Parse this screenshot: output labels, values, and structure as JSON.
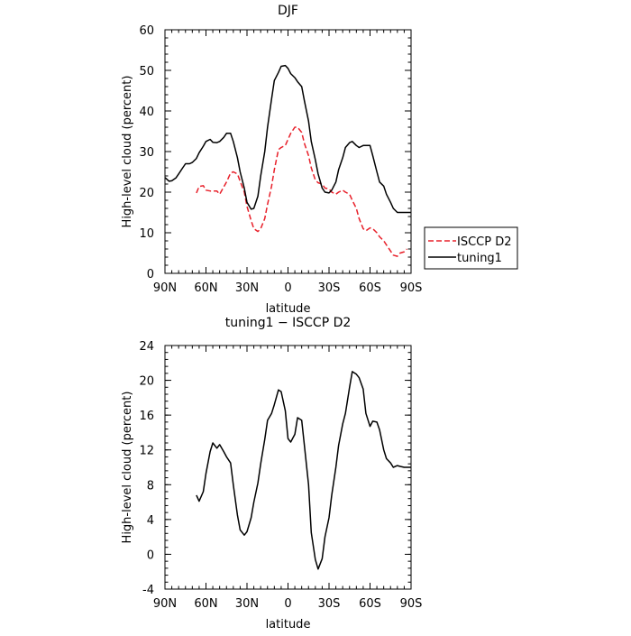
{
  "chart_data": [
    {
      "type": "line",
      "title": "DJF",
      "xlabel": "latitude",
      "ylabel": "High-level cloud (percent)",
      "xlim": [
        -90,
        90
      ],
      "ylim": [
        0,
        60
      ],
      "xtick_values": [
        -90,
        -60,
        -30,
        0,
        30,
        60,
        90
      ],
      "xticks": [
        "90N",
        "60N",
        "30N",
        "0",
        "30S",
        "60S",
        "90S"
      ],
      "yticks": [
        0,
        10,
        20,
        30,
        40,
        50,
        60
      ],
      "legend_position": "right",
      "series": [
        {
          "name": "ISCCP D2",
          "color": "#e8202a",
          "dash": true,
          "x": [
            -67,
            -65,
            -62,
            -60,
            -57,
            -55,
            -52,
            -50,
            -48,
            -45,
            -42,
            -40,
            -37,
            -35,
            -32,
            -30,
            -27,
            -25,
            -22,
            -20,
            -17,
            -15,
            -12,
            -10,
            -7,
            -5,
            -2,
            0,
            2,
            5,
            7,
            10,
            12,
            15,
            17,
            20,
            22,
            25,
            27,
            30,
            32,
            35,
            37,
            40,
            42,
            45,
            47,
            50,
            52,
            55,
            57,
            60,
            62,
            65,
            67,
            70,
            72,
            75,
            77,
            80,
            82,
            85,
            87
          ],
          "y": [
            19.8,
            21.4,
            21.6,
            20.5,
            20.3,
            20.3,
            20.3,
            19.5,
            20.7,
            22.5,
            24.7,
            25.0,
            24.5,
            22.7,
            20.0,
            16.5,
            13.0,
            11.0,
            10.3,
            11.0,
            13.5,
            17.0,
            21.5,
            25.5,
            30.5,
            31.0,
            31.5,
            33.0,
            34.5,
            36.0,
            36.0,
            34.7,
            32.0,
            29.0,
            26.0,
            23.0,
            22.3,
            22.0,
            21.0,
            20.8,
            20.0,
            19.5,
            20.0,
            20.5,
            20.0,
            19.5,
            18.0,
            16.0,
            13.5,
            11.0,
            10.5,
            11.2,
            11.0,
            10.0,
            9.0,
            8.0,
            7.0,
            5.5,
            4.5,
            4.2,
            5.0,
            5.3,
            6.0
          ]
        },
        {
          "name": "tuning1",
          "color": "#000000",
          "dash": false,
          "x": [
            -90,
            -87,
            -85,
            -82,
            -80,
            -77,
            -75,
            -72,
            -70,
            -67,
            -65,
            -62,
            -60,
            -57,
            -55,
            -52,
            -50,
            -47,
            -45,
            -42,
            -40,
            -37,
            -35,
            -32,
            -30,
            -27,
            -25,
            -22,
            -20,
            -17,
            -15,
            -12,
            -10,
            -7,
            -5,
            -2,
            0,
            2,
            5,
            7,
            10,
            12,
            15,
            17,
            20,
            22,
            25,
            27,
            30,
            32,
            35,
            37,
            40,
            42,
            45,
            47,
            50,
            52,
            55,
            57,
            60,
            62,
            65,
            67,
            70,
            72,
            75,
            77,
            80,
            82,
            85,
            87,
            90
          ],
          "y": [
            23.6,
            22.7,
            22.8,
            23.5,
            24.5,
            26.0,
            27.0,
            27.0,
            27.3,
            28.3,
            29.7,
            31.3,
            32.5,
            33.0,
            32.3,
            32.2,
            32.5,
            33.5,
            34.5,
            34.5,
            32.5,
            28.5,
            25.0,
            21.0,
            17.5,
            15.8,
            16.0,
            19.0,
            24.0,
            30.0,
            36.0,
            43.0,
            47.5,
            49.5,
            51.0,
            51.2,
            50.5,
            49.2,
            48.2,
            47.2,
            46.0,
            42.5,
            37.5,
            32.5,
            28.0,
            24.5,
            21.0,
            20.0,
            19.8,
            20.5,
            22.5,
            25.5,
            28.5,
            31.0,
            32.2,
            32.5,
            31.5,
            31.0,
            31.5,
            31.5,
            31.5,
            29.0,
            25.0,
            22.5,
            21.5,
            19.5,
            17.5,
            16.0,
            15.0,
            15.0,
            15.0,
            15.0,
            15.0
          ]
        }
      ]
    },
    {
      "type": "line",
      "title": "tuning1 − ISCCP D2",
      "xlabel": "latitude",
      "ylabel": "High-level cloud (percent)",
      "xlim": [
        -90,
        90
      ],
      "ylim": [
        -4,
        24
      ],
      "xtick_values": [
        -90,
        -60,
        -30,
        0,
        30,
        60,
        90
      ],
      "xticks": [
        "90N",
        "60N",
        "30N",
        "0",
        "30S",
        "60S",
        "90S"
      ],
      "yticks": [
        -4,
        0,
        4,
        8,
        12,
        16,
        20,
        24
      ],
      "series": [
        {
          "color": "#000000",
          "x": [
            -67,
            -65,
            -62,
            -60,
            -57,
            -55,
            -52,
            -50,
            -47,
            -45,
            -42,
            -40,
            -37,
            -35,
            -32,
            -30,
            -27,
            -25,
            -22,
            -20,
            -17,
            -15,
            -12,
            -10,
            -7,
            -5,
            -2,
            0,
            2,
            5,
            7,
            10,
            12,
            15,
            17,
            20,
            22,
            25,
            27,
            30,
            32,
            35,
            37,
            40,
            42,
            45,
            47,
            50,
            52,
            55,
            57,
            60,
            62,
            65,
            67,
            70,
            72,
            75,
            77,
            80,
            82,
            85,
            87,
            90
          ],
          "y": [
            6.8,
            6.1,
            7.2,
            9.3,
            11.8,
            12.8,
            12.2,
            12.6,
            11.8,
            11.2,
            10.5,
            8.0,
            4.5,
            2.8,
            2.2,
            2.6,
            4.2,
            6.0,
            8.2,
            10.4,
            13.2,
            15.4,
            16.2,
            17.2,
            18.9,
            18.7,
            16.5,
            13.3,
            12.9,
            13.8,
            15.7,
            15.4,
            12.5,
            8.0,
            2.5,
            -0.6,
            -1.7,
            -0.5,
            2.0,
            4.2,
            6.8,
            10.0,
            12.5,
            15.0,
            16.2,
            19.2,
            21.0,
            20.7,
            20.3,
            19.0,
            16.2,
            14.7,
            15.3,
            15.2,
            14.3,
            12.0,
            11.0,
            10.5,
            10.0,
            10.2,
            10.1,
            10.0,
            10.0,
            10.0
          ]
        }
      ]
    }
  ]
}
